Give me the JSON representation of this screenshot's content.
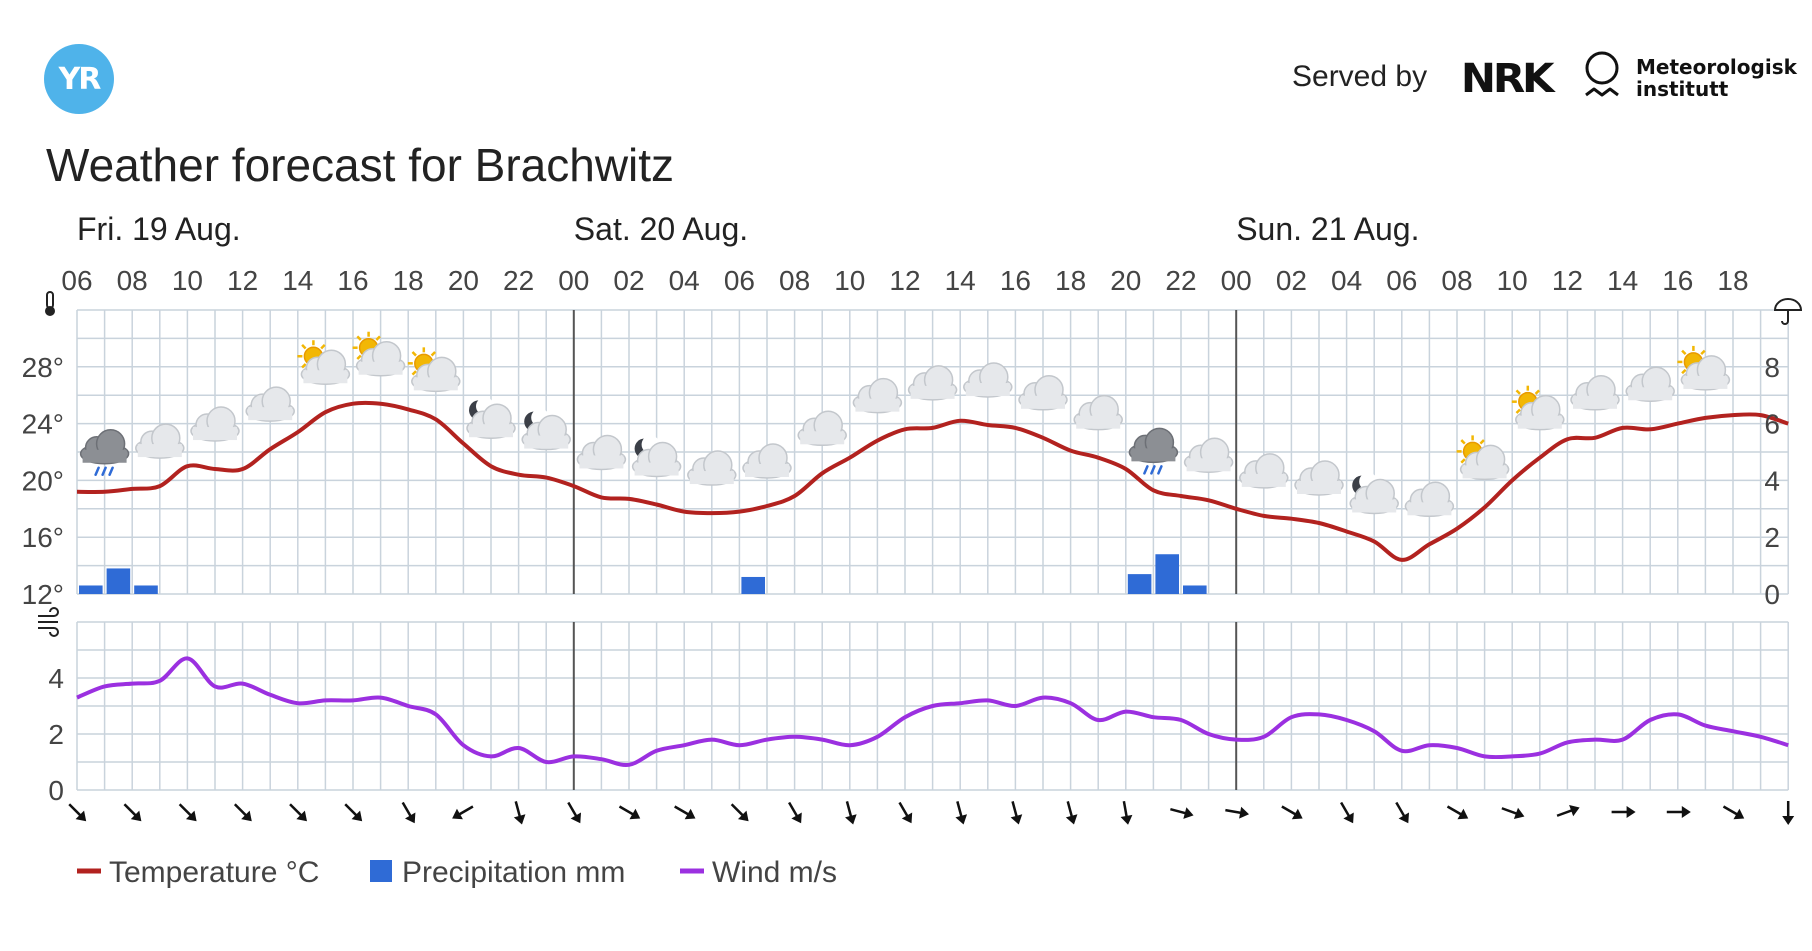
{
  "header": {
    "logo_text": "YR",
    "served_by": "Served by",
    "nrk_logo": "NRK",
    "met_name_line1": "Meteorologisk",
    "met_name_line2": "institutt"
  },
  "title": "Weather forecast for Brachwitz",
  "colors": {
    "temperature": "#b2221f",
    "precipitation": "#2f6bd6",
    "wind": "#9b30e0",
    "grid": "#c9d3dc",
    "day_divider": "#555555",
    "logo": "#4fb3ea"
  },
  "chart_data": {
    "type": "line",
    "days": [
      {
        "label": "Fri. 19 Aug.",
        "start_hour_index": 0
      },
      {
        "label": "Sat. 20 Aug.",
        "start_hour_index": 18
      },
      {
        "label": "Sun. 21 Aug.",
        "start_hour_index": 42
      }
    ],
    "hour_ticks": [
      "06",
      "08",
      "10",
      "12",
      "14",
      "16",
      "18",
      "20",
      "22",
      "00",
      "02",
      "04",
      "06",
      "08",
      "10",
      "12",
      "14",
      "16",
      "18",
      "20",
      "22",
      "00",
      "02",
      "04",
      "06",
      "08",
      "10",
      "12",
      "14",
      "16",
      "18"
    ],
    "x_hours": [
      "06",
      "07",
      "08",
      "09",
      "10",
      "11",
      "12",
      "13",
      "14",
      "15",
      "16",
      "17",
      "18",
      "19",
      "20",
      "21",
      "22",
      "23",
      "00",
      "01",
      "02",
      "03",
      "04",
      "05",
      "06",
      "07",
      "08",
      "09",
      "10",
      "11",
      "12",
      "13",
      "14",
      "15",
      "16",
      "17",
      "18",
      "19",
      "20",
      "21",
      "22",
      "23",
      "00",
      "01",
      "02",
      "03",
      "04",
      "05",
      "06",
      "07",
      "08",
      "09",
      "10",
      "11",
      "12",
      "13",
      "14",
      "15",
      "16",
      "17",
      "18",
      "19",
      "20"
    ],
    "temperature": {
      "unit": "°C",
      "y_ticks": [
        "28°",
        "24°",
        "20°",
        "16°",
        "12°"
      ],
      "ylim": [
        12,
        32
      ],
      "values": [
        19.2,
        19.2,
        19.4,
        19.6,
        21.0,
        20.8,
        20.8,
        22.2,
        23.4,
        24.8,
        25.4,
        25.4,
        25.0,
        24.3,
        22.6,
        21.0,
        20.4,
        20.2,
        19.6,
        18.8,
        18.7,
        18.3,
        17.8,
        17.7,
        17.8,
        18.2,
        18.9,
        20.5,
        21.6,
        22.8,
        23.6,
        23.7,
        24.2,
        23.9,
        23.7,
        23.0,
        22.1,
        21.6,
        20.8,
        19.3,
        18.9,
        18.6,
        18.0,
        17.5,
        17.3,
        17.0,
        16.4,
        15.7,
        14.4,
        15.5,
        16.6,
        18.1,
        20.0,
        21.6,
        22.9,
        23.0,
        23.7,
        23.6,
        24.0,
        24.4,
        24.6,
        24.6,
        24.0
      ]
    },
    "precipitation": {
      "unit": "mm",
      "y_ticks": [
        "8",
        "6",
        "4",
        "2",
        "0"
      ],
      "ylim": [
        0,
        10
      ],
      "values": [
        0.3,
        0.9,
        0.3,
        0,
        0,
        0,
        0,
        0,
        0,
        0,
        0,
        0,
        0,
        0,
        0,
        0,
        0,
        0,
        0,
        0,
        0,
        0,
        0,
        0,
        0.6,
        0,
        0,
        0,
        0,
        0,
        0,
        0,
        0,
        0,
        0,
        0,
        0,
        0,
        0.7,
        1.4,
        0.3,
        0,
        0,
        0,
        0,
        0,
        0,
        0,
        0,
        0,
        0,
        0,
        0,
        0,
        0,
        0,
        0,
        0,
        0,
        0,
        0,
        0,
        0
      ]
    },
    "wind": {
      "unit": "m/s",
      "y_ticks": [
        "4",
        "2",
        "0"
      ],
      "ylim": [
        0,
        6
      ],
      "values": [
        3.3,
        3.7,
        3.8,
        3.9,
        4.7,
        3.7,
        3.8,
        3.4,
        3.1,
        3.2,
        3.2,
        3.3,
        3.0,
        2.7,
        1.6,
        1.2,
        1.5,
        1.0,
        1.2,
        1.1,
        0.9,
        1.4,
        1.6,
        1.8,
        1.6,
        1.8,
        1.9,
        1.8,
        1.6,
        1.9,
        2.6,
        3.0,
        3.1,
        3.2,
        3.0,
        3.3,
        3.1,
        2.5,
        2.8,
        2.6,
        2.5,
        2.0,
        1.8,
        1.9,
        2.6,
        2.7,
        2.5,
        2.1,
        1.4,
        1.6,
        1.5,
        1.2,
        1.2,
        1.3,
        1.7,
        1.8,
        1.8,
        2.5,
        2.7,
        2.3,
        2.1,
        1.9,
        1.6
      ]
    },
    "weather_icons": [
      {
        "hour_index": 1,
        "icon": "cloud-rain-icon"
      },
      {
        "hour_index": 3,
        "icon": "cloud-icon"
      },
      {
        "hour_index": 5,
        "icon": "cloud-icon"
      },
      {
        "hour_index": 7,
        "icon": "cloud-icon"
      },
      {
        "hour_index": 9,
        "icon": "partly-sunny-icon"
      },
      {
        "hour_index": 11,
        "icon": "partly-sunny-icon"
      },
      {
        "hour_index": 13,
        "icon": "partly-sunny-icon"
      },
      {
        "hour_index": 15,
        "icon": "partly-cloudy-night-icon"
      },
      {
        "hour_index": 17,
        "icon": "partly-cloudy-night-icon"
      },
      {
        "hour_index": 19,
        "icon": "cloud-icon"
      },
      {
        "hour_index": 21,
        "icon": "partly-cloudy-night-icon"
      },
      {
        "hour_index": 23,
        "icon": "cloud-icon"
      },
      {
        "hour_index": 25,
        "icon": "cloud-icon"
      },
      {
        "hour_index": 27,
        "icon": "cloud-icon"
      },
      {
        "hour_index": 29,
        "icon": "cloud-icon"
      },
      {
        "hour_index": 31,
        "icon": "cloud-icon"
      },
      {
        "hour_index": 33,
        "icon": "cloud-icon"
      },
      {
        "hour_index": 35,
        "icon": "cloud-icon"
      },
      {
        "hour_index": 37,
        "icon": "cloud-icon"
      },
      {
        "hour_index": 39,
        "icon": "cloud-rain-icon"
      },
      {
        "hour_index": 41,
        "icon": "cloud-icon"
      },
      {
        "hour_index": 43,
        "icon": "cloud-icon"
      },
      {
        "hour_index": 45,
        "icon": "cloud-icon"
      },
      {
        "hour_index": 47,
        "icon": "partly-cloudy-night-icon"
      },
      {
        "hour_index": 49,
        "icon": "cloud-icon"
      },
      {
        "hour_index": 51,
        "icon": "partly-sunny-icon"
      },
      {
        "hour_index": 53,
        "icon": "partly-sunny-icon"
      },
      {
        "hour_index": 55,
        "icon": "cloud-icon"
      },
      {
        "hour_index": 57,
        "icon": "cloud-icon"
      },
      {
        "hour_index": 59,
        "icon": "partly-sunny-icon"
      }
    ],
    "wind_direction_arrows_deg": [
      135,
      135,
      135,
      135,
      135,
      135,
      150,
      240,
      165,
      150,
      120,
      120,
      135,
      150,
      165,
      150,
      165,
      165,
      165,
      170,
      105,
      100,
      120,
      150,
      150,
      120,
      110,
      70,
      90,
      90,
      120,
      180
    ],
    "legend": [
      {
        "label": "Temperature °C",
        "series": "temperature"
      },
      {
        "label": "Precipitation mm",
        "series": "precipitation"
      },
      {
        "label": "Wind m/s",
        "series": "wind"
      }
    ],
    "grid": true,
    "legend_position": "bottom-left"
  }
}
